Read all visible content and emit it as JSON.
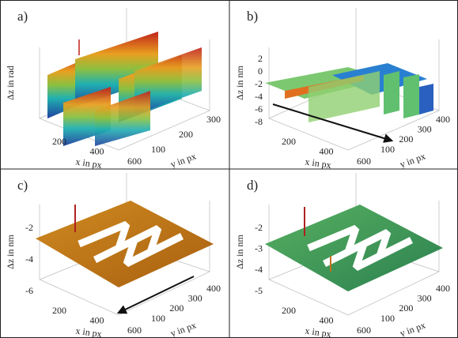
{
  "panels": [
    {
      "label": "a)",
      "z_label": "Δz in rad",
      "x_ticks": [
        "200",
        "400",
        "600"
      ],
      "x_label": "x in px",
      "y_ticks": [
        "100",
        "200",
        "300"
      ],
      "y_label": "y in px"
    },
    {
      "label": "b)",
      "z_label": "Δz in nm",
      "z_ticks": [
        "2",
        "0",
        "-2",
        "-4",
        "-6",
        "-8"
      ],
      "x_ticks": [
        "200",
        "400",
        "600"
      ],
      "x_label": "x in px",
      "y_ticks": [
        "100",
        "200",
        "300",
        "400"
      ],
      "y_label": "y in px"
    },
    {
      "label": "c)",
      "z_label": "Δz in nm",
      "z_ticks": [
        "-2",
        "-4",
        "-6"
      ],
      "x_ticks": [
        "200",
        "400",
        "600"
      ],
      "x_label": "x in px",
      "y_ticks": [
        "100",
        "200",
        "300",
        "400"
      ],
      "y_label": "y in px"
    },
    {
      "label": "d)",
      "z_label": "Δz in nm",
      "z_ticks": [
        "-2",
        "-3",
        "-4",
        "-5"
      ],
      "x_ticks": [
        "200",
        "400",
        "600"
      ],
      "x_label": "x in px",
      "y_ticks": [
        "100",
        "200",
        "300",
        "400"
      ],
      "y_label": "y in px"
    }
  ]
}
